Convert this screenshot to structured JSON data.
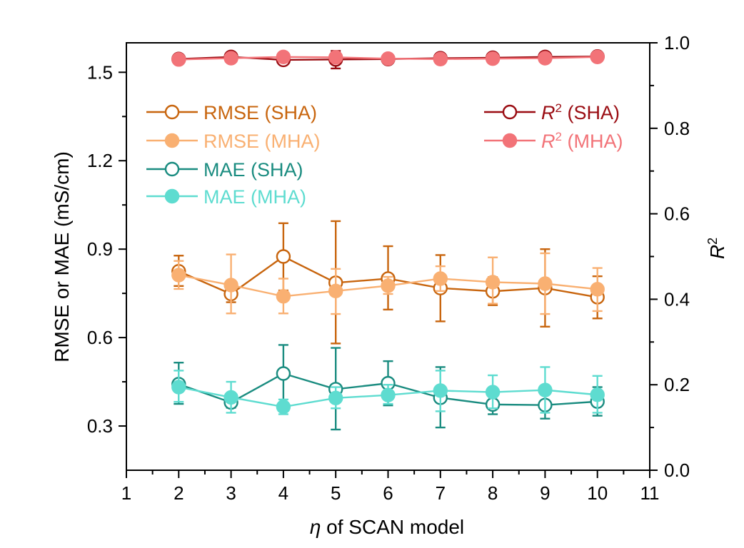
{
  "chart_data": {
    "type": "line",
    "x_label_var": "η",
    "x_label_rest": " of SCAN model",
    "y_left_label": "RMSE or MAE (mS/cm)",
    "y_right_label_base": "R",
    "y_right_label_sup": "2",
    "xlim": [
      1,
      11
    ],
    "x_ticks": [
      1,
      2,
      3,
      4,
      5,
      6,
      7,
      8,
      9,
      10,
      11
    ],
    "ylim_left": [
      0.15,
      1.6
    ],
    "y_left_ticks": [
      0.3,
      0.6,
      0.9,
      1.2,
      1.5
    ],
    "y_left_tick_labels": [
      "0.3",
      "0.6",
      "0.9",
      "1.2",
      "1.5"
    ],
    "ylim_right": [
      0.0,
      1.0
    ],
    "y_right_ticks": [
      0.0,
      0.2,
      0.4,
      0.6,
      0.8,
      1.0
    ],
    "y_right_tick_labels": [
      "0.0",
      "0.2",
      "0.4",
      "0.6",
      "0.8",
      "1.0"
    ],
    "x": [
      2,
      3,
      4,
      5,
      6,
      7,
      8,
      9,
      10
    ],
    "series": [
      {
        "name": "RMSE (SHA)",
        "legend_text": "RMSE (SHA)",
        "axis": "left",
        "filled": false,
        "color": "#C8650E",
        "values": [
          0.825,
          0.748,
          0.875,
          0.786,
          0.8,
          0.768,
          0.757,
          0.768,
          0.737
        ],
        "err_low": [
          0.775,
          0.72,
          0.76,
          0.58,
          0.695,
          0.655,
          0.71,
          0.637,
          0.665
        ],
        "err_high": [
          0.878,
          0.778,
          0.988,
          0.995,
          0.91,
          0.88,
          0.805,
          0.9,
          0.808
        ]
      },
      {
        "name": "RMSE (MHA)",
        "legend_text": "RMSE (MHA)",
        "axis": "left",
        "filled": true,
        "color": "#F9B072",
        "values": [
          0.812,
          0.778,
          0.74,
          0.758,
          0.776,
          0.8,
          0.788,
          0.783,
          0.764
        ],
        "err_low": [
          0.765,
          0.682,
          0.682,
          0.68,
          0.748,
          0.758,
          0.715,
          0.68,
          0.69
        ],
        "err_high": [
          0.86,
          0.882,
          0.8,
          0.833,
          0.806,
          0.842,
          0.872,
          0.886,
          0.836
        ]
      },
      {
        "name": "MAE (SHA)",
        "legend_text": "MAE (SHA)",
        "axis": "left",
        "filled": false,
        "color": "#1A8C80",
        "values": [
          0.442,
          0.38,
          0.478,
          0.425,
          0.445,
          0.396,
          0.373,
          0.371,
          0.383
        ],
        "err_low": [
          0.375,
          0.362,
          0.378,
          0.288,
          0.37,
          0.295,
          0.34,
          0.325,
          0.335
        ],
        "err_high": [
          0.515,
          0.4,
          0.575,
          0.565,
          0.52,
          0.5,
          0.405,
          0.42,
          0.432
        ]
      },
      {
        "name": "MAE (MHA)",
        "legend_text": "MAE (MHA)",
        "axis": "left",
        "filled": true,
        "color": "#5EDCD0",
        "values": [
          0.432,
          0.397,
          0.365,
          0.395,
          0.405,
          0.42,
          0.415,
          0.422,
          0.406
        ],
        "err_low": [
          0.382,
          0.345,
          0.34,
          0.36,
          0.375,
          0.35,
          0.36,
          0.345,
          0.345
        ],
        "err_high": [
          0.488,
          0.45,
          0.39,
          0.432,
          0.44,
          0.488,
          0.472,
          0.5,
          0.47
        ]
      },
      {
        "name": "R2 (SHA)",
        "legend_text": " (SHA)",
        "axis": "right",
        "filled": false,
        "color": "#9A0C12",
        "values": [
          0.962,
          0.967,
          0.96,
          0.961,
          0.962,
          0.964,
          0.965,
          0.967,
          0.968
        ],
        "err_low": [
          0.958,
          0.962,
          0.953,
          0.94,
          0.956,
          0.958,
          0.959,
          0.962,
          0.965
        ],
        "err_high": [
          0.967,
          0.972,
          0.967,
          0.981,
          0.968,
          0.97,
          0.971,
          0.972,
          0.972
        ]
      },
      {
        "name": "R2 (MHA)",
        "legend_text": " (MHA)",
        "axis": "right",
        "filled": true,
        "color": "#F27378",
        "values": [
          0.961,
          0.964,
          0.967,
          0.966,
          0.963,
          0.962,
          0.963,
          0.964,
          0.967
        ],
        "err_low": [
          0.956,
          0.959,
          0.962,
          0.96,
          0.959,
          0.957,
          0.958,
          0.959,
          0.963
        ],
        "err_high": [
          0.966,
          0.969,
          0.972,
          0.972,
          0.967,
          0.967,
          0.968,
          0.969,
          0.971
        ]
      }
    ],
    "legend_left": [
      "RMSE (SHA)",
      "RMSE (MHA)",
      "MAE (SHA)",
      "MAE (MHA)"
    ],
    "legend_right": [
      "R2 (SHA)",
      "R2 (MHA)"
    ],
    "legend_placement": "top-left and top-right inside plot"
  }
}
